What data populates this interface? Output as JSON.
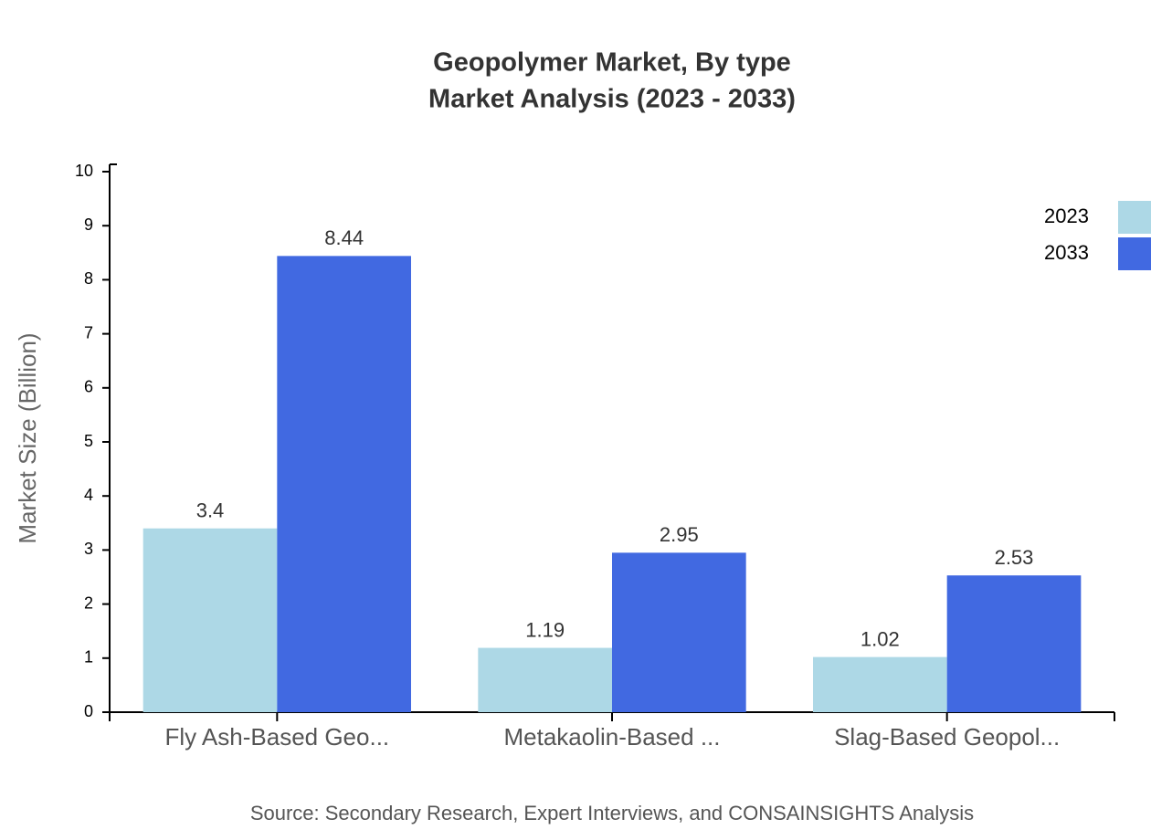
{
  "chart_data": {
    "type": "bar",
    "title": "Geopolymer Market, By type",
    "subtitle": "Market Analysis (2023 - 2033)",
    "y_label": "Market Size (Billion)",
    "source": "Source: Secondary Research, Expert Interviews, and CONSAINSIGHTS Analysis",
    "categories": [
      "Fly Ash-Based Geo...",
      "Metakaolin-Based ...",
      "Slag-Based Geopol..."
    ],
    "series": [
      {
        "name": "2023",
        "color": "#add8e6",
        "values": [
          3.4,
          1.19,
          1.02
        ]
      },
      {
        "name": "2033",
        "color": "#4169e1",
        "values": [
          8.44,
          2.95,
          2.53
        ]
      }
    ],
    "ylim": [
      0,
      10
    ],
    "yticks": [
      0,
      1,
      2,
      3,
      4,
      5,
      6,
      7,
      8,
      9,
      10
    ],
    "legend": "top-right"
  }
}
